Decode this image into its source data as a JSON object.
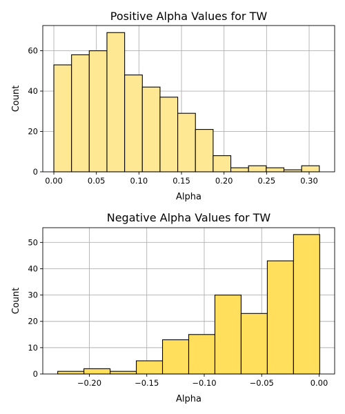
{
  "chart_data": [
    {
      "type": "bar",
      "subtype": "histogram",
      "title": "Positive Alpha Values for TW",
      "xlabel": "Alpha",
      "ylabel": "Count",
      "xlim": [
        -0.013,
        0.33
      ],
      "ylim": [
        0,
        72.5
      ],
      "bin_edges": [
        0.0,
        0.0208,
        0.0416,
        0.0624,
        0.0832,
        0.104,
        0.1248,
        0.1456,
        0.1664,
        0.1872,
        0.208,
        0.2288,
        0.2496,
        0.2704,
        0.2912,
        0.312
      ],
      "values": [
        53,
        58,
        60,
        69,
        48,
        42,
        37,
        29,
        21,
        8,
        2,
        3,
        2,
        1,
        3
      ],
      "xticks": [
        0.0,
        0.05,
        0.1,
        0.15,
        0.2,
        0.25,
        0.3
      ],
      "xtick_labels": [
        "0.00",
        "0.05",
        "0.10",
        "0.15",
        "0.20",
        "0.25",
        "0.30"
      ],
      "yticks": [
        0,
        20,
        40,
        60
      ],
      "ytick_labels": [
        "0",
        "20",
        "40",
        "60"
      ],
      "grid": true,
      "bar_color": "#ffe894",
      "edge_color": "#000000"
    },
    {
      "type": "bar",
      "subtype": "histogram",
      "title": "Negative Alpha Values for TW",
      "xlabel": "Alpha",
      "ylabel": "Count",
      "xlim": [
        -0.2405,
        0.0135
      ],
      "ylim": [
        0,
        55.6
      ],
      "bin_edges": [
        -0.2275,
        -0.2047,
        -0.1819,
        -0.1591,
        -0.1363,
        -0.1135,
        -0.0907,
        -0.0679,
        -0.0451,
        -0.0223,
        0.0005
      ],
      "values": [
        1,
        2,
        1,
        5,
        13,
        15,
        30,
        23,
        43,
        53
      ],
      "xticks": [
        -0.2,
        -0.15,
        -0.1,
        -0.05,
        0.0
      ],
      "xtick_labels": [
        "−0.20",
        "−0.15",
        "−0.10",
        "−0.05",
        "0.00"
      ],
      "yticks": [
        0,
        10,
        20,
        30,
        40,
        50
      ],
      "ytick_labels": [
        "0",
        "10",
        "20",
        "30",
        "40",
        "50"
      ],
      "grid": true,
      "bar_color": "#ffdf5c",
      "edge_color": "#000000"
    }
  ]
}
